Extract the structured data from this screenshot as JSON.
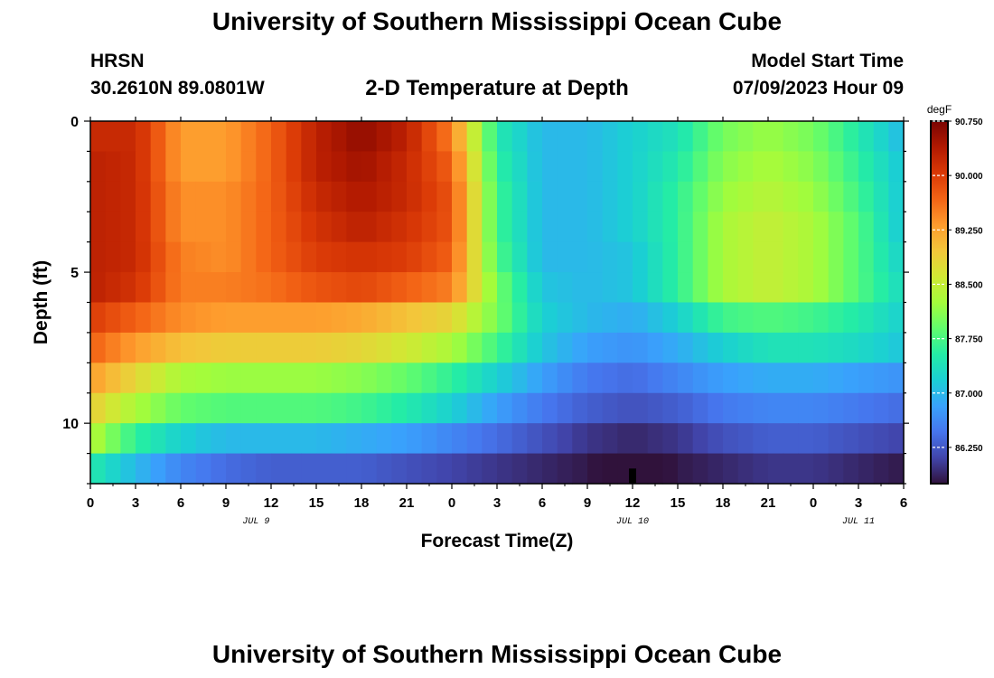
{
  "header": {
    "title": "University of Southern Mississippi Ocean Cube",
    "station": "HRSN",
    "coords": "30.2610N  89.0801W",
    "subtitle": "2-D Temperature at Depth",
    "model_start_label": "Model Start Time",
    "model_start_value": "07/09/2023 Hour 09"
  },
  "footer": {
    "title": "University of Southern Mississippi Ocean Cube"
  },
  "colors": {
    "colormap": [
      "#30123b",
      "#4145ab",
      "#4675ed",
      "#39a2fc",
      "#1bcfd4",
      "#24eca6",
      "#61fc6c",
      "#a4fc3b",
      "#d1e834",
      "#f3c63a",
      "#fe9b2d",
      "#f36315",
      "#d93806",
      "#b11901",
      "#7a0402"
    ],
    "marker": "#000000"
  },
  "chart_data": {
    "type": "heatmap",
    "title": "2-D Temperature at Depth",
    "xlabel": "Forecast Time(Z)",
    "ylabel": "Depth (ft)",
    "x_tick_labels": [
      "0",
      "3",
      "6",
      "9",
      "12",
      "15",
      "18",
      "21",
      "0",
      "3",
      "6",
      "9",
      "12",
      "15",
      "18",
      "21",
      "0",
      "3",
      "6"
    ],
    "x_hours": [
      0,
      54
    ],
    "date_labels": [
      {
        "label": "JUL 9",
        "hour": 11
      },
      {
        "label": "JUL 10",
        "hour": 36
      },
      {
        "label": "JUL 11",
        "hour": 51
      }
    ],
    "y_tick_labels": [
      "0",
      "5",
      "10"
    ],
    "y_ticks": [
      0,
      5,
      10
    ],
    "ylim": [
      0,
      12
    ],
    "depth_rows": [
      0.5,
      1.5,
      2.5,
      3.5,
      4.5,
      5.5,
      6.5,
      7.5,
      8.5,
      9.5,
      10.5,
      11.5
    ],
    "hours": [
      0,
      3,
      6,
      9,
      12,
      15,
      18,
      21,
      24,
      27,
      30,
      33,
      36,
      39,
      42,
      45,
      48,
      51,
      54
    ],
    "temperatures": [
      [
        90.2,
        90.2,
        89.3,
        89.3,
        89.7,
        90.3,
        90.6,
        90.3,
        89.5,
        87.5,
        87.0,
        87.0,
        87.2,
        87.4,
        88.0,
        88.2,
        88.0,
        87.5,
        87.0
      ],
      [
        90.3,
        90.2,
        89.3,
        89.3,
        89.7,
        90.3,
        90.5,
        90.2,
        89.7,
        87.6,
        87.0,
        87.0,
        87.2,
        87.5,
        88.1,
        88.3,
        88.1,
        87.6,
        87.1
      ],
      [
        90.3,
        90.2,
        89.4,
        89.4,
        89.7,
        90.2,
        90.4,
        90.2,
        89.8,
        87.7,
        87.0,
        87.0,
        87.2,
        87.6,
        88.2,
        88.4,
        88.2,
        87.7,
        87.1
      ],
      [
        90.3,
        90.2,
        89.4,
        89.4,
        89.7,
        90.1,
        90.3,
        90.1,
        89.8,
        87.7,
        87.0,
        87.0,
        87.2,
        87.6,
        88.3,
        88.5,
        88.3,
        87.8,
        87.1
      ],
      [
        90.3,
        90.2,
        89.5,
        89.4,
        89.7,
        90.0,
        90.1,
        90.0,
        89.7,
        87.8,
        87.0,
        87.0,
        87.1,
        87.6,
        88.3,
        88.5,
        88.3,
        87.8,
        87.2
      ],
      [
        90.3,
        90.1,
        89.5,
        89.5,
        89.6,
        89.8,
        89.9,
        89.7,
        89.5,
        88.0,
        87.1,
        87.0,
        87.1,
        87.6,
        88.3,
        88.5,
        88.3,
        87.8,
        87.3
      ],
      [
        90.0,
        89.7,
        89.4,
        89.3,
        89.3,
        89.3,
        89.2,
        89.0,
        88.8,
        88.0,
        87.2,
        87.0,
        86.9,
        87.2,
        87.7,
        87.8,
        87.7,
        87.5,
        87.2
      ],
      [
        89.7,
        89.3,
        89.0,
        88.9,
        88.9,
        88.9,
        88.8,
        88.6,
        88.3,
        87.7,
        87.1,
        86.8,
        86.7,
        86.9,
        87.2,
        87.4,
        87.4,
        87.3,
        87.1
      ],
      [
        89.3,
        88.8,
        88.3,
        88.2,
        88.2,
        88.2,
        88.1,
        87.9,
        87.6,
        87.2,
        86.8,
        86.5,
        86.4,
        86.6,
        86.8,
        86.9,
        86.9,
        86.8,
        86.7
      ],
      [
        88.9,
        88.3,
        87.9,
        87.8,
        87.8,
        87.8,
        87.7,
        87.5,
        87.2,
        86.8,
        86.5,
        86.3,
        86.2,
        86.3,
        86.5,
        86.6,
        86.6,
        86.5,
        86.4
      ],
      [
        88.4,
        87.6,
        87.2,
        87.0,
        87.0,
        87.0,
        86.9,
        86.8,
        86.6,
        86.4,
        86.2,
        86.0,
        85.9,
        86.0,
        86.2,
        86.3,
        86.3,
        86.2,
        86.1
      ],
      [
        87.5,
        87.0,
        86.6,
        86.4,
        86.3,
        86.3,
        86.3,
        86.2,
        86.1,
        86.0,
        85.9,
        85.8,
        85.6,
        85.8,
        85.9,
        86.0,
        86.0,
        85.9,
        85.8
      ]
    ],
    "colorbar": {
      "unit": "degF",
      "min": 85.75,
      "max": 90.75,
      "tick_values": [
        90.75,
        90.0,
        89.25,
        88.5,
        87.75,
        87.0,
        86.25
      ],
      "tick_labels": [
        "90.750",
        "90.000",
        "89.250",
        "88.500",
        "87.750",
        "87.000",
        "86.250"
      ]
    },
    "marker": {
      "hour": 36,
      "depth_from": 11.5,
      "depth_to": 12
    }
  }
}
